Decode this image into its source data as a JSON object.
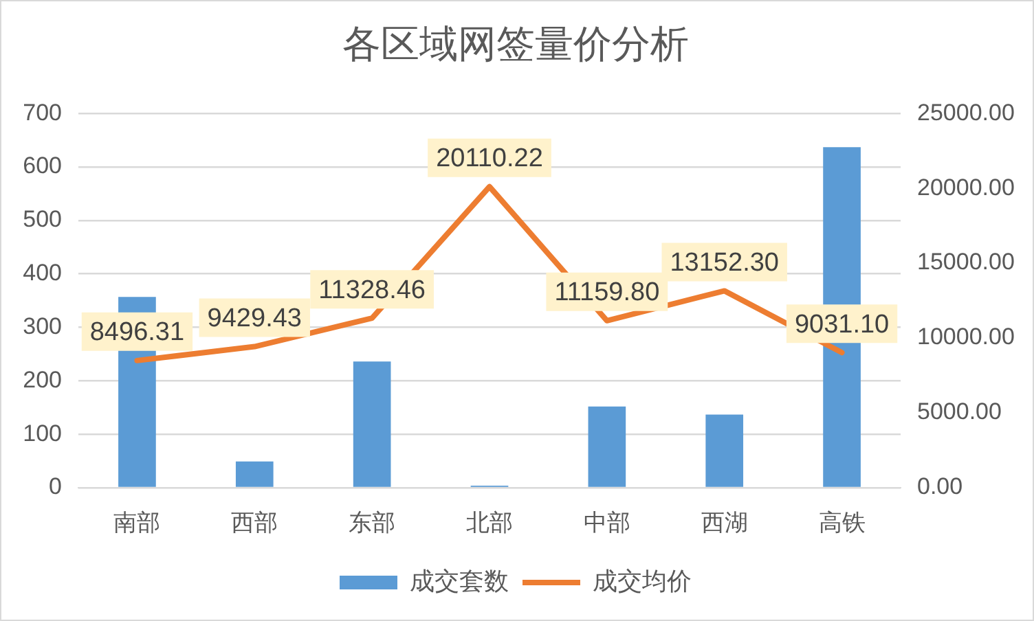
{
  "chart_data": {
    "type": "bar",
    "title": "各区域网签量价分析",
    "categories": [
      "南部",
      "西部",
      "东部",
      "北部",
      "中部",
      "西湖",
      "高铁"
    ],
    "series": [
      {
        "name": "成交套数",
        "color": "#5b9bd5",
        "values": [
          357,
          49,
          236,
          4,
          152,
          137,
          637
        ]
      },
      {
        "type": "line",
        "name": "成交均价",
        "color": "#ed7d31",
        "axis": "y2",
        "values": [
          8496.31,
          9429.43,
          11328.46,
          20110.22,
          11159.8,
          13152.3,
          9031.1
        ],
        "value_labels": [
          "8496.31",
          "9429.43",
          "11328.46",
          "20110.22",
          "11159.80",
          "13152.30",
          "9031.10"
        ]
      }
    ],
    "ylim": [
      0,
      700
    ],
    "yticks": [
      0,
      100,
      200,
      300,
      400,
      500,
      600,
      700
    ],
    "y2lim": [
      0,
      25000
    ],
    "y2ticks": [
      {
        "value": 0,
        "label": "0.00"
      },
      {
        "value": 5000,
        "label": "5000.00"
      },
      {
        "value": 10000,
        "label": "10000.00"
      },
      {
        "value": 15000,
        "label": "15000.00"
      },
      {
        "value": 20000,
        "label": "20000.00"
      },
      {
        "value": 25000,
        "label": "25000.00"
      }
    ],
    "grid": "y",
    "legend": "bottom",
    "marker": "none"
  }
}
